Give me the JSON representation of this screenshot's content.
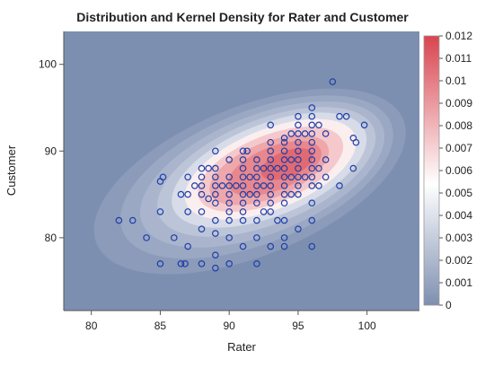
{
  "chart_data": {
    "type": "scatter",
    "title": "Distribution and Kernel Density for Rater and Customer",
    "xlabel": "Rater",
    "ylabel": "Customer",
    "xlim": [
      78,
      103.8
    ],
    "ylim": [
      71.6,
      103.8
    ],
    "x_ticks": [
      80,
      85,
      90,
      95,
      100
    ],
    "y_ticks": [
      80,
      90,
      100
    ],
    "colorbar": {
      "min": 0,
      "max": 0.012,
      "ticks": [
        "0",
        "0.001",
        "0.002",
        "0.003",
        "0.004",
        "0.005",
        "0.006",
        "0.007",
        "0.008",
        "0.009",
        "0.01",
        "0.011",
        "0.012"
      ],
      "low_color": "#7d8fb0",
      "mid_color": "#ffffff",
      "high_color": "#d9444f"
    },
    "density_background": "#7d8fb0",
    "marker_color": "#1f3fa8",
    "density_levels": [
      {
        "label": "0.001",
        "color": "#8b9bb9",
        "cx": 91.5,
        "cy": 86.5,
        "rx": 12,
        "ry": 8.6
      },
      {
        "label": "0.002",
        "color": "#9aa8c3",
        "cx": 92.0,
        "cy": 87.0,
        "rx": 10.5,
        "ry": 7.6
      },
      {
        "label": "0.003",
        "color": "#aab5cd",
        "cx": 92.4,
        "cy": 87.3,
        "rx": 9.4,
        "ry": 6.8
      },
      {
        "label": "0.004",
        "color": "#bcc5d8",
        "cx": 92.7,
        "cy": 87.6,
        "rx": 8.4,
        "ry": 6.0
      },
      {
        "label": "0.005",
        "color": "#d7dce8",
        "cx": 92.9,
        "cy": 87.8,
        "rx": 7.5,
        "ry": 5.3
      },
      {
        "label": "0.006",
        "color": "#fbeeef",
        "cx": 93.0,
        "cy": 87.9,
        "rx": 6.6,
        "ry": 4.6
      },
      {
        "label": "0.007",
        "color": "#f5c9cc",
        "cx": 93.0,
        "cy": 87.9,
        "rx": 5.6,
        "ry": 3.9
      },
      {
        "label": "0.008",
        "color": "#eea7ab",
        "cx": 92.9,
        "cy": 87.8,
        "rx": 4.6,
        "ry": 3.2
      },
      {
        "label": "0.009",
        "color": "#e8878d",
        "cx": 93.3,
        "cy": 88.0,
        "rx": 3.6,
        "ry": 2.5
      },
      {
        "label": "0.010",
        "color": "#e16a72",
        "cx": 94.2,
        "cy": 88.5,
        "rx": 2.0,
        "ry": 1.5
      }
    ],
    "points": [
      [
        82,
        82
      ],
      [
        83,
        82
      ],
      [
        84,
        80
      ],
      [
        85,
        77
      ],
      [
        85,
        83
      ],
      [
        85,
        86.5
      ],
      [
        85.2,
        87
      ],
      [
        86,
        80
      ],
      [
        86.5,
        77
      ],
      [
        86.5,
        85
      ],
      [
        86.8,
        77
      ],
      [
        87,
        87
      ],
      [
        87,
        83
      ],
      [
        87,
        79
      ],
      [
        87.5,
        86
      ],
      [
        87,
        85
      ],
      [
        88,
        88
      ],
      [
        88,
        87
      ],
      [
        88,
        86
      ],
      [
        88,
        85
      ],
      [
        88,
        83
      ],
      [
        88,
        81
      ],
      [
        88,
        77
      ],
      [
        88.5,
        88
      ],
      [
        88.5,
        84.5
      ],
      [
        89,
        90
      ],
      [
        89,
        88
      ],
      [
        89,
        87
      ],
      [
        89,
        86
      ],
      [
        89,
        85
      ],
      [
        89,
        84
      ],
      [
        89,
        82
      ],
      [
        89,
        80.5
      ],
      [
        89,
        78
      ],
      [
        89,
        76.5
      ],
      [
        89.5,
        86
      ],
      [
        90,
        89
      ],
      [
        90,
        87
      ],
      [
        90,
        86
      ],
      [
        90,
        85
      ],
      [
        90,
        84
      ],
      [
        90,
        83
      ],
      [
        90,
        82
      ],
      [
        90,
        80
      ],
      [
        90,
        77
      ],
      [
        90.5,
        86
      ],
      [
        91,
        90
      ],
      [
        91,
        89
      ],
      [
        91,
        88
      ],
      [
        91,
        87
      ],
      [
        91,
        86
      ],
      [
        91,
        85
      ],
      [
        91,
        84
      ],
      [
        91,
        83
      ],
      [
        91,
        82
      ],
      [
        91,
        79
      ],
      [
        91.3,
        90
      ],
      [
        91.5,
        87
      ],
      [
        91.5,
        85
      ],
      [
        92,
        89
      ],
      [
        92,
        88
      ],
      [
        92,
        87
      ],
      [
        92,
        86
      ],
      [
        92,
        85
      ],
      [
        92,
        84
      ],
      [
        92,
        82
      ],
      [
        92,
        80
      ],
      [
        92,
        77
      ],
      [
        92.5,
        88
      ],
      [
        92.5,
        86
      ],
      [
        92.5,
        83
      ],
      [
        93,
        93
      ],
      [
        93,
        91
      ],
      [
        93,
        90
      ],
      [
        93,
        89
      ],
      [
        93,
        88
      ],
      [
        93,
        87
      ],
      [
        93,
        86
      ],
      [
        93,
        85
      ],
      [
        93,
        84
      ],
      [
        93,
        83
      ],
      [
        93,
        79
      ],
      [
        93.5,
        88
      ],
      [
        93.5,
        82
      ],
      [
        94,
        91.5
      ],
      [
        94,
        91
      ],
      [
        94,
        90
      ],
      [
        94,
        89
      ],
      [
        94,
        88
      ],
      [
        94,
        87
      ],
      [
        94,
        86
      ],
      [
        94,
        85
      ],
      [
        94,
        84
      ],
      [
        94,
        82
      ],
      [
        94,
        80
      ],
      [
        94,
        79
      ],
      [
        94.5,
        92
      ],
      [
        94.5,
        89
      ],
      [
        94.5,
        87
      ],
      [
        94.5,
        85
      ],
      [
        95,
        94
      ],
      [
        95,
        93
      ],
      [
        95,
        92
      ],
      [
        95,
        91
      ],
      [
        95,
        90
      ],
      [
        95,
        89
      ],
      [
        95,
        88
      ],
      [
        95,
        87
      ],
      [
        95,
        86
      ],
      [
        95,
        85
      ],
      [
        95,
        81
      ],
      [
        95.5,
        92
      ],
      [
        95.5,
        87
      ],
      [
        96,
        95
      ],
      [
        96,
        94
      ],
      [
        96,
        93
      ],
      [
        96,
        92
      ],
      [
        96,
        91
      ],
      [
        96,
        90
      ],
      [
        96,
        89
      ],
      [
        96,
        88
      ],
      [
        96,
        87
      ],
      [
        96,
        86
      ],
      [
        96,
        84
      ],
      [
        96,
        82
      ],
      [
        96,
        79
      ],
      [
        96.5,
        93
      ],
      [
        96.5,
        88
      ],
      [
        96.5,
        86
      ],
      [
        97,
        92
      ],
      [
        97,
        89
      ],
      [
        97,
        87
      ],
      [
        97.5,
        98
      ],
      [
        98,
        94
      ],
      [
        98,
        86
      ],
      [
        98.5,
        94
      ],
      [
        99,
        91.5
      ],
      [
        99,
        88
      ],
      [
        99.2,
        91
      ],
      [
        99.8,
        93
      ]
    ]
  }
}
